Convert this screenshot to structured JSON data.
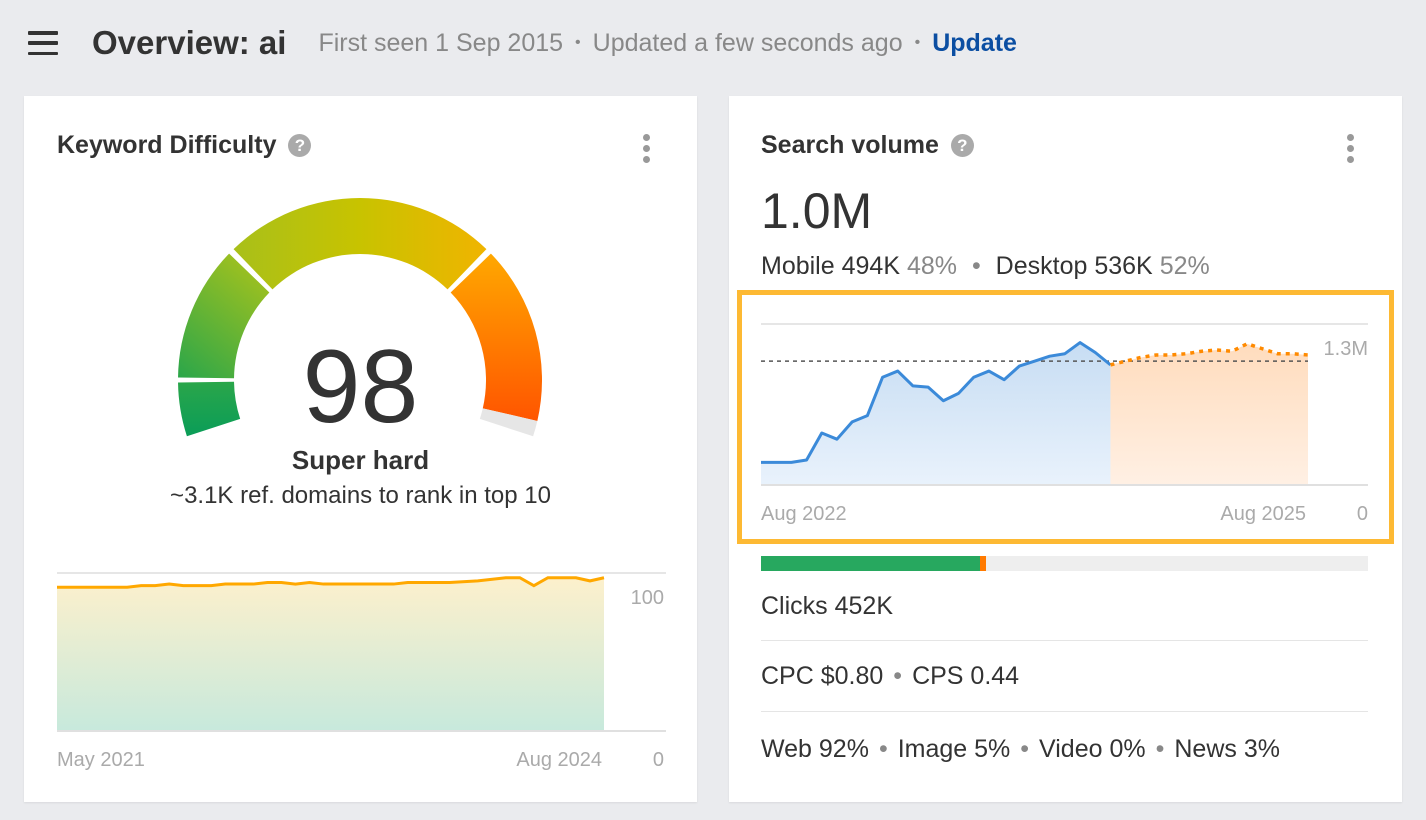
{
  "header": {
    "title": "Overview: ai",
    "first_seen": "First seen 1 Sep 2015",
    "updated": "Updated a few seconds ago",
    "update_link": "Update"
  },
  "kd": {
    "title": "Keyword Difficulty",
    "help": "?",
    "score": "98",
    "label": "Super hard",
    "subtitle": "~3.1K ref. domains to rank in top 10",
    "gauge_level": 98,
    "colors": {
      "green": "#0a9d58",
      "yellow": "#c8c300",
      "orange": "#ffa800",
      "red": "#ff5500"
    }
  },
  "sv": {
    "title": "Search volume",
    "help": "?",
    "total": "1.0M",
    "mobile_label": "Mobile",
    "mobile_value": "494K",
    "mobile_pct": "48%",
    "desktop_label": "Desktop",
    "desktop_value": "536K",
    "desktop_pct": "52%",
    "clicks_bar": {
      "organic_pct": 36,
      "paid_pct": 1,
      "organic_color": "#27a85f",
      "paid_color": "#ff7a00"
    },
    "clicks": "Clicks 452K",
    "cpc": "CPC $0.80",
    "cps": "CPS 0.44",
    "serp": [
      "Web 92%",
      "Image 5%",
      "Video 0%",
      "News 3%"
    ]
  },
  "chart_data": [
    {
      "type": "area",
      "name": "kd-history",
      "x_start_label": "May 2021",
      "x_end_label": "Aug 2024",
      "y_labels": [
        "100",
        "0"
      ],
      "ylim": [
        0,
        100
      ],
      "line_color": "#ffa800",
      "points": [
        [
          "2021-05",
          91
        ],
        [
          "2021-10",
          91
        ],
        [
          "2021-11",
          92
        ],
        [
          "2021-12",
          92
        ],
        [
          "2022-01",
          93
        ],
        [
          "2022-02",
          92
        ],
        [
          "2022-04",
          92
        ],
        [
          "2022-05",
          93
        ],
        [
          "2022-07",
          93
        ],
        [
          "2022-08",
          94
        ],
        [
          "2022-09",
          94
        ],
        [
          "2022-10",
          93
        ],
        [
          "2022-11",
          94
        ],
        [
          "2022-12",
          93
        ],
        [
          "2023-05",
          93
        ],
        [
          "2023-06",
          94
        ],
        [
          "2023-09",
          94
        ],
        [
          "2023-11",
          95
        ],
        [
          "2024-01",
          97
        ],
        [
          "2024-02",
          97
        ],
        [
          "2024-03",
          92
        ],
        [
          "2024-04",
          97
        ],
        [
          "2024-06",
          97
        ],
        [
          "2024-07",
          95
        ],
        [
          "2024-08",
          97
        ]
      ]
    },
    {
      "type": "area",
      "name": "search-volume-history",
      "x_start_label": "Aug 2022",
      "x_end_label": "Aug 2025",
      "y_labels": [
        "1.3M",
        "0"
      ],
      "ylim": [
        0,
        1300000
      ],
      "average": 1000000,
      "actual_color": "#3b8ad9",
      "forecast_color": "#ff8a00",
      "actual": [
        [
          "2022-08",
          183000
        ],
        [
          "2022-10",
          183000
        ],
        [
          "2022-11",
          202000
        ],
        [
          "2022-12",
          420000
        ],
        [
          "2023-01",
          370000
        ],
        [
          "2023-02",
          510000
        ],
        [
          "2023-03",
          560000
        ],
        [
          "2023-04",
          870000
        ],
        [
          "2023-05",
          920000
        ],
        [
          "2023-06",
          800000
        ],
        [
          "2023-07",
          790000
        ],
        [
          "2023-08",
          680000
        ],
        [
          "2023-09",
          740000
        ],
        [
          "2023-10",
          870000
        ],
        [
          "2023-11",
          920000
        ],
        [
          "2023-12",
          850000
        ],
        [
          "2024-01",
          960000
        ],
        [
          "2024-02",
          1000000
        ],
        [
          "2024-03",
          1040000
        ],
        [
          "2024-04",
          1060000
        ],
        [
          "2024-05",
          1150000
        ],
        [
          "2024-06",
          1070000
        ],
        [
          "2024-07",
          970000
        ]
      ],
      "forecast": [
        [
          "2024-07",
          970000
        ],
        [
          "2024-08",
          1000000
        ],
        [
          "2024-09",
          1030000
        ],
        [
          "2024-10",
          1050000
        ],
        [
          "2024-11",
          1050000
        ],
        [
          "2024-12",
          1060000
        ],
        [
          "2025-01",
          1080000
        ],
        [
          "2025-02",
          1090000
        ],
        [
          "2025-03",
          1080000
        ],
        [
          "2025-04",
          1140000
        ],
        [
          "2025-05",
          1100000
        ],
        [
          "2025-06",
          1060000
        ],
        [
          "2025-07",
          1060000
        ],
        [
          "2025-08",
          1050000
        ]
      ]
    }
  ]
}
